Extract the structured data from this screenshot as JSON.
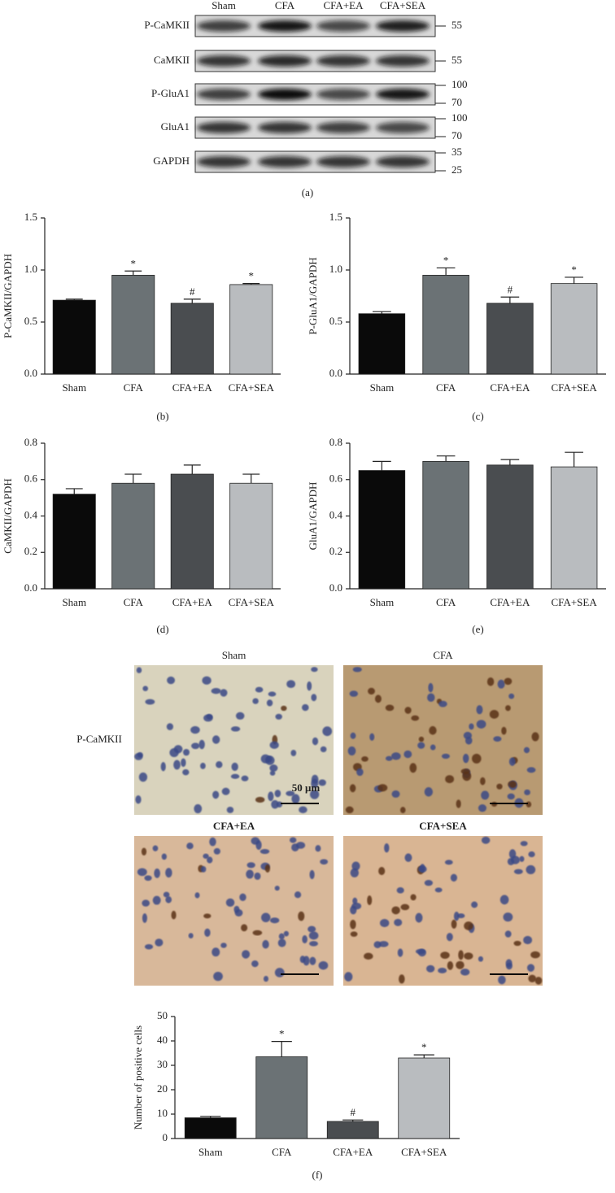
{
  "blot": {
    "columns": [
      "Sham",
      "CFA",
      "CFA+EA",
      "CFA+SEA"
    ],
    "rows": [
      {
        "label": "P-CaMKII",
        "markers": [
          55
        ]
      },
      {
        "label": "CaMKII",
        "markers": [
          55
        ]
      },
      {
        "label": "P-GluA1",
        "markers": [
          100,
          70
        ]
      },
      {
        "label": "GluA1",
        "markers": [
          100,
          70
        ]
      },
      {
        "label": "GAPDH",
        "markers": [
          35,
          25
        ]
      }
    ],
    "caption": "(a)"
  },
  "chart_data": [
    {
      "type": "bar",
      "ylabel": "P-CaMKII/GAPDH",
      "caption": "(b)",
      "categories": [
        "Sham",
        "CFA",
        "CFA+EA",
        "CFA+SEA"
      ],
      "values": [
        0.71,
        0.95,
        0.68,
        0.86
      ],
      "errors": [
        0.01,
        0.04,
        0.04,
        0.01
      ],
      "annotations": [
        null,
        "*",
        "#",
        "*"
      ],
      "colors": [
        "#0a0a0a",
        "#6b7275",
        "#4a4d50",
        "#b9bcbf"
      ],
      "ylim": [
        0,
        1.5
      ],
      "yticks": [
        {
          "value": 0,
          "label": "0.0"
        },
        0.5,
        {
          "value": 1,
          "label": "1.0"
        },
        1.5
      ]
    },
    {
      "type": "bar",
      "ylabel": "P-GluA1/GAPDH",
      "caption": "(c)",
      "categories": [
        "Sham",
        "CFA",
        "CFA+EA",
        "CFA+SEA"
      ],
      "values": [
        0.58,
        0.95,
        0.68,
        0.87
      ],
      "errors": [
        0.02,
        0.07,
        0.06,
        0.06
      ],
      "annotations": [
        null,
        "*",
        "#",
        "*"
      ],
      "colors": [
        "#0a0a0a",
        "#6b7275",
        "#4a4d50",
        "#b9bcbf"
      ],
      "ylim": [
        0,
        1.5
      ],
      "yticks": [
        {
          "value": 0,
          "label": "0.0"
        },
        0.5,
        {
          "value": 1,
          "label": "1.0"
        },
        1.5
      ]
    },
    {
      "type": "bar",
      "ylabel": "CaMKII/GAPDH",
      "caption": "(d)",
      "categories": [
        "Sham",
        "CFA",
        "CFA+EA",
        "CFA+SEA"
      ],
      "values": [
        0.52,
        0.58,
        0.63,
        0.58
      ],
      "errors": [
        0.03,
        0.05,
        0.05,
        0.05
      ],
      "annotations": [
        null,
        null,
        null,
        null
      ],
      "colors": [
        "#0a0a0a",
        "#6b7275",
        "#4a4d50",
        "#b9bcbf"
      ],
      "ylim": [
        0,
        0.8
      ],
      "yticks": [
        {
          "value": 0,
          "label": "0.0"
        },
        0.2,
        0.4,
        0.6,
        0.8
      ]
    },
    {
      "type": "bar",
      "ylabel": "GluA1/GAPDH",
      "caption": "(e)",
      "categories": [
        "Sham",
        "CFA",
        "CFA+EA",
        "CFA+SEA"
      ],
      "values": [
        0.65,
        0.7,
        0.68,
        0.67
      ],
      "errors": [
        0.05,
        0.03,
        0.03,
        0.08
      ],
      "annotations": [
        null,
        null,
        null,
        null
      ],
      "colors": [
        "#0a0a0a",
        "#6b7275",
        "#4a4d50",
        "#b9bcbf"
      ],
      "ylim": [
        0,
        0.8
      ],
      "yticks": [
        {
          "value": 0,
          "label": "0.0"
        },
        0.2,
        0.4,
        0.6,
        0.8
      ]
    },
    {
      "type": "bar",
      "ylabel": "Number of positive cells",
      "caption": "(f)",
      "categories": [
        "Sham",
        "CFA",
        "CFA+EA",
        "CFA+SEA"
      ],
      "values": [
        8.5,
        33.5,
        7,
        33
      ],
      "errors": [
        0.6,
        6.3,
        0.6,
        1.3
      ],
      "annotations": [
        null,
        "*",
        "#",
        "*"
      ],
      "colors": [
        "#0a0a0a",
        "#6b7275",
        "#4a4d50",
        "#b9bcbf"
      ],
      "ylim": [
        0,
        50
      ],
      "yticks": [
        0,
        10,
        20,
        30,
        40,
        50
      ]
    }
  ],
  "micrographs": {
    "row_label": "P-CaMKII",
    "panels": [
      {
        "label": "Sham"
      },
      {
        "label": "CFA"
      },
      {
        "label": "CFA+EA"
      },
      {
        "label": "CFA+SEA"
      }
    ],
    "scale_bar": "50 μm"
  }
}
